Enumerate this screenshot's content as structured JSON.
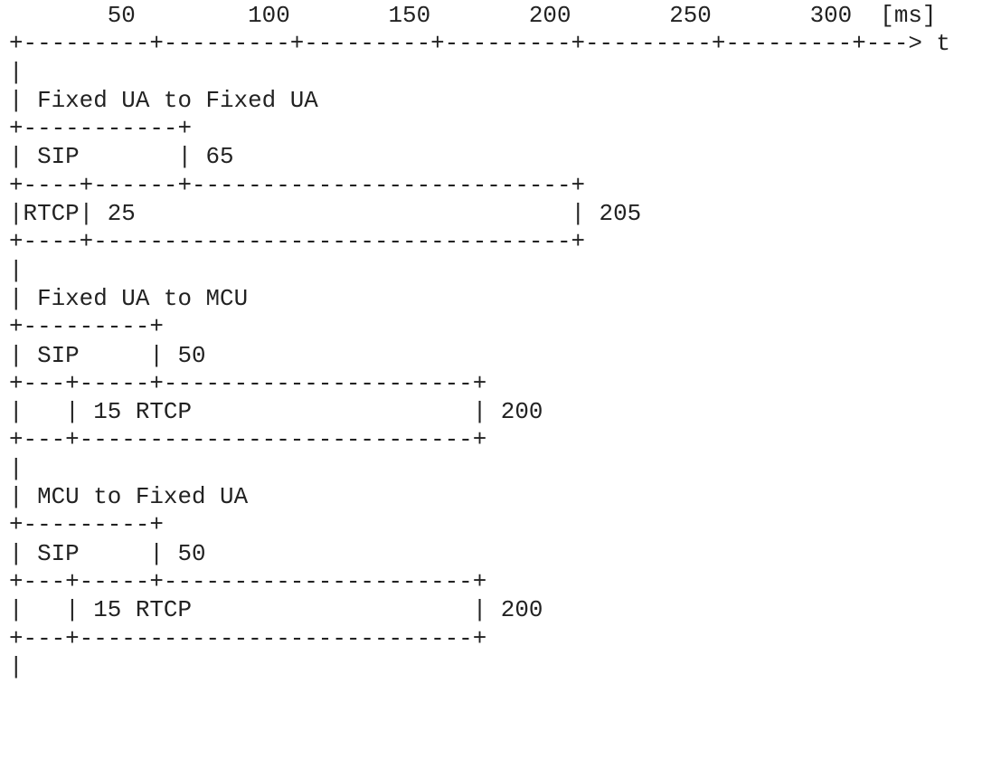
{
  "diagram": {
    "lines": [
      "       50        100       150       200       250       300  [ms]",
      "+---------+---------+---------+---------+---------+---------+---> t",
      "|",
      "| Fixed UA to Fixed UA",
      "+-----------+",
      "| SIP       | 65",
      "+----+------+---------------------------+",
      "|RTCP| 25                               | 205",
      "+----+----------------------------------+",
      "|",
      "| Fixed UA to MCU",
      "+---------+",
      "| SIP     | 50",
      "+---+-----+----------------------+",
      "|   | 15 RTCP                    | 200",
      "+---+----------------------------+",
      "|",
      "| MCU to Fixed UA",
      "+---------+",
      "| SIP     | 50",
      "+---+-----+----------------------+",
      "|   | 15 RTCP                    | 200",
      "+---+----------------------------+",
      "|"
    ]
  }
}
